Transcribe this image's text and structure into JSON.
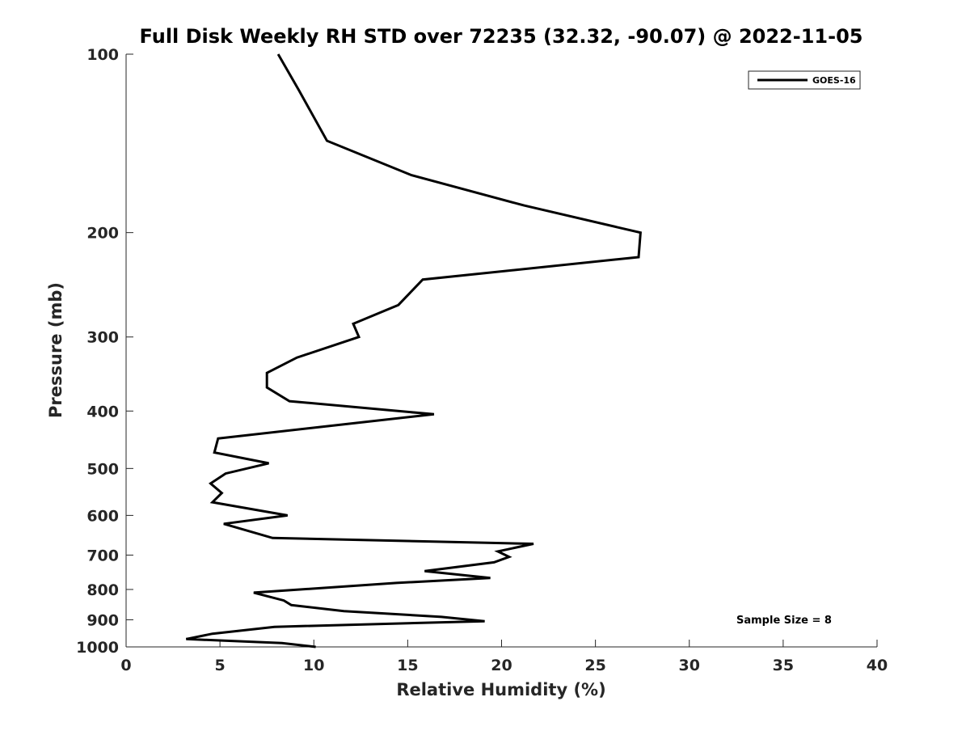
{
  "chart_data": {
    "type": "line",
    "title": "Full Disk Weekly RH STD over 72235 (32.32, -90.07) @ 2022-11-05",
    "xlabel": "Relative Humidity (%)",
    "ylabel": "Pressure (mb)",
    "xlim": [
      0,
      40
    ],
    "ylim": [
      100,
      1000
    ],
    "y_scale": "log",
    "y_reversed": true,
    "xticks": [
      0,
      5,
      10,
      15,
      20,
      25,
      30,
      35,
      40
    ],
    "xtick_labels": [
      "0",
      "5",
      "10",
      "15",
      "20",
      "25",
      "30",
      "35",
      "40"
    ],
    "yticks": [
      100,
      200,
      300,
      400,
      500,
      600,
      700,
      800,
      900,
      1000
    ],
    "ytick_labels": [
      "100",
      "200",
      "300",
      "400",
      "500",
      "600",
      "700",
      "800",
      "900",
      "1000"
    ],
    "grid": false,
    "legend_position": "top-right",
    "annotation": "Sample Size = 8",
    "line_color": "#000000",
    "series": [
      {
        "name": "GOES-16",
        "x": [
          8.1,
          9.2,
          10.7,
          15.2,
          21.2,
          27.4,
          27.3,
          15.8,
          14.5,
          12.1,
          12.4,
          9.1,
          7.5,
          7.5,
          8.7,
          16.4,
          10.5,
          4.9,
          4.7,
          7.6,
          5.3,
          4.5,
          5.1,
          4.6,
          8.6,
          5.2,
          7.8,
          21.7,
          19.8,
          20.4,
          19.6,
          15.9,
          19.4,
          14.4,
          6.8,
          8.4,
          8.8,
          11.6,
          16.8,
          19.1,
          7.9,
          4.6,
          3.2,
          8.3,
          10.1
        ],
        "y": [
          100,
          115,
          140,
          160,
          180,
          200,
          220,
          240,
          265,
          285,
          300,
          325,
          345,
          365,
          385,
          405,
          425,
          445,
          470,
          490,
          510,
          530,
          550,
          570,
          600,
          620,
          655,
          670,
          690,
          705,
          720,
          745,
          765,
          780,
          810,
          835,
          850,
          870,
          890,
          905,
          925,
          950,
          970,
          985,
          1000
        ]
      }
    ]
  }
}
